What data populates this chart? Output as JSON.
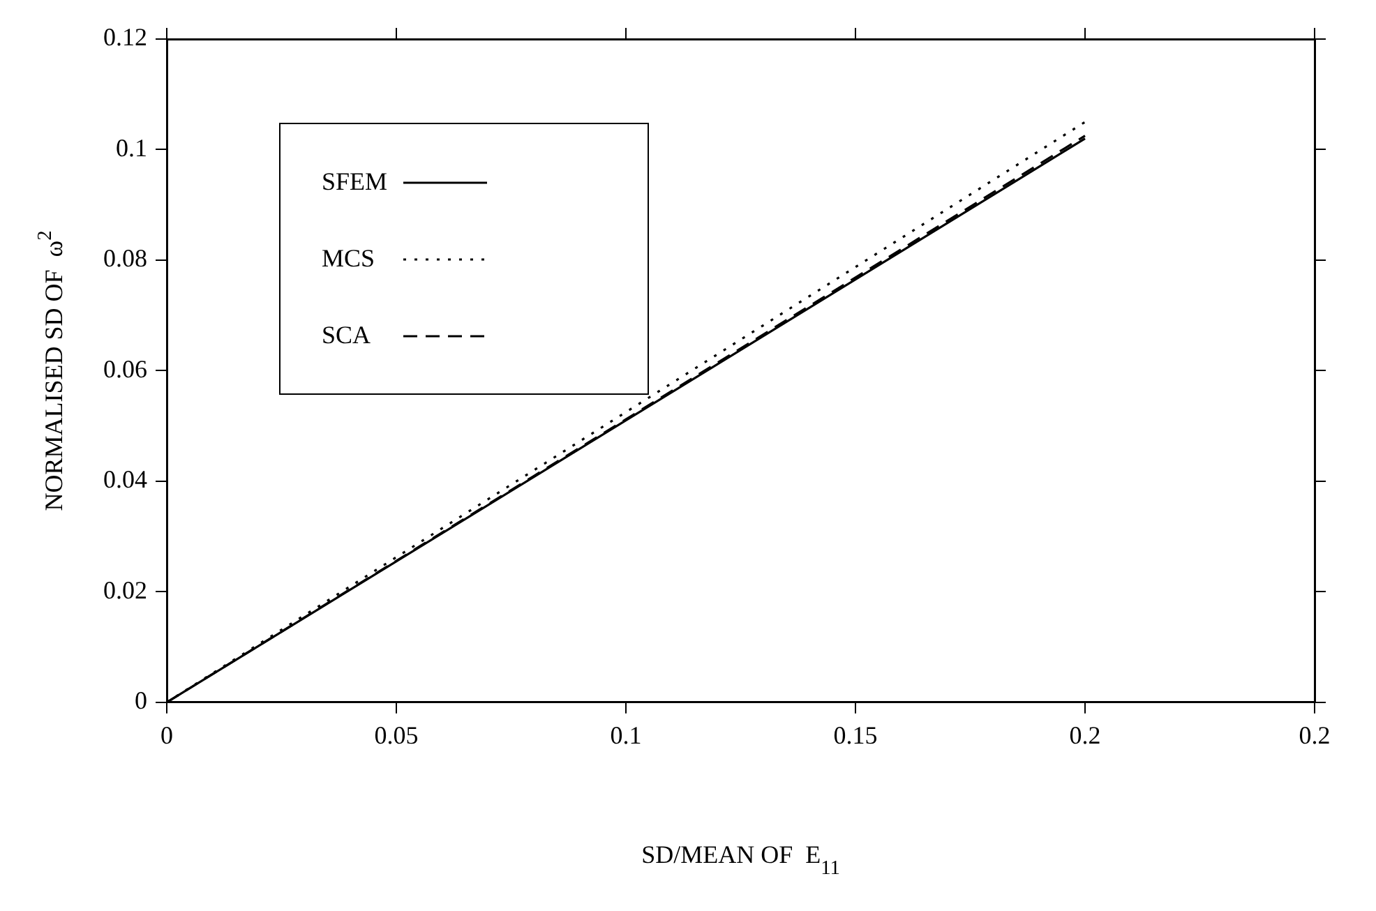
{
  "chart_data": {
    "type": "line",
    "xlabel": "SD/MEAN OF  E$_{11}$",
    "ylabel": "NORMALISED SD OF  ω$^{2}$",
    "x": [
      0,
      0.1,
      0.2
    ],
    "series": [
      {
        "name": "SFEM",
        "color": "#000000",
        "line_style": "solid",
        "values": [
          0,
          0.051,
          0.102
        ]
      },
      {
        "name": "MCS",
        "color": "#000000",
        "line_style": "dotted",
        "values": [
          0,
          0.0525,
          0.105
        ]
      },
      {
        "name": "SCA",
        "color": "#000000",
        "line_style": "dashed",
        "values": [
          0,
          0.0512,
          0.1025
        ]
      }
    ],
    "xlim": [
      0,
      0.25
    ],
    "xticks": [
      0,
      0.05,
      0.1,
      0.15,
      0.2,
      {
        "value": 0.25,
        "label": "0.2"
      }
    ],
    "ylim": [
      0,
      0.12
    ],
    "yticks": [
      0,
      0.02,
      0.04,
      0.06,
      0.08,
      0.1,
      0.12
    ],
    "grid": false,
    "legend": "top left",
    "marker": "none"
  }
}
